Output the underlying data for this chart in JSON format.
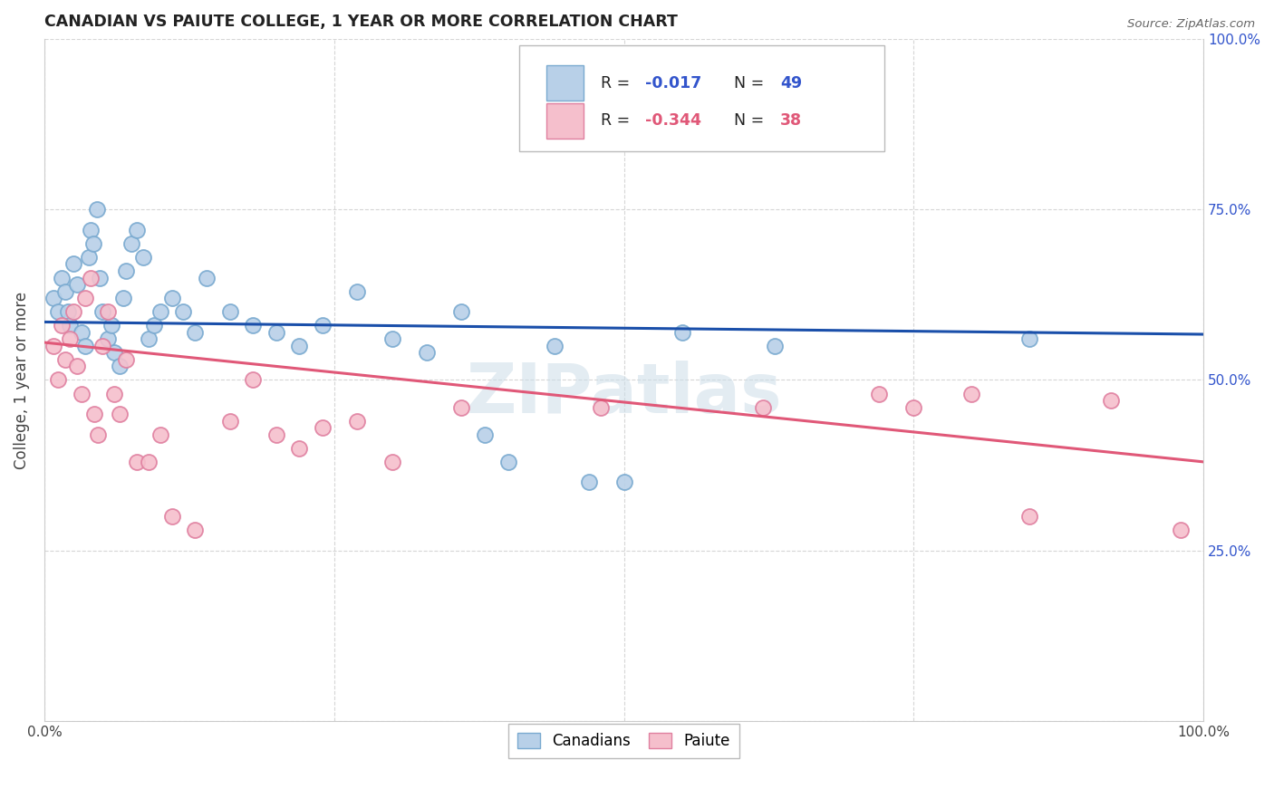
{
  "title": "CANADIAN VS PAIUTE COLLEGE, 1 YEAR OR MORE CORRELATION CHART",
  "source": "Source: ZipAtlas.com",
  "ylabel": "College, 1 year or more",
  "xlim": [
    0,
    1
  ],
  "ylim": [
    0,
    1
  ],
  "ytick_labels_right": [
    "100.0%",
    "75.0%",
    "50.0%",
    "25.0%"
  ],
  "ytick_positions_right": [
    1.0,
    0.75,
    0.5,
    0.25
  ],
  "legend_r1": "-0.017",
  "legend_n1": "49",
  "legend_r2": "-0.344",
  "legend_n2": "38",
  "canadians_color": "#b8d0e8",
  "canadians_edge": "#7aaad0",
  "paiute_color": "#f5bfcc",
  "paiute_edge": "#e080a0",
  "line_canadian_color": "#1a4faa",
  "line_paiute_color": "#e05878",
  "blue_text_color": "#3355cc",
  "pink_text_color": "#e05878",
  "watermark": "ZIPatlas",
  "canadians_x": [
    0.008,
    0.012,
    0.015,
    0.018,
    0.02,
    0.022,
    0.025,
    0.028,
    0.032,
    0.035,
    0.038,
    0.04,
    0.042,
    0.045,
    0.048,
    0.05,
    0.055,
    0.058,
    0.06,
    0.065,
    0.068,
    0.07,
    0.075,
    0.08,
    0.085,
    0.09,
    0.095,
    0.1,
    0.11,
    0.12,
    0.13,
    0.14,
    0.16,
    0.18,
    0.2,
    0.22,
    0.24,
    0.27,
    0.3,
    0.33,
    0.36,
    0.38,
    0.4,
    0.44,
    0.47,
    0.5,
    0.55,
    0.63,
    0.85
  ],
  "canadians_y": [
    0.62,
    0.6,
    0.65,
    0.63,
    0.6,
    0.58,
    0.67,
    0.64,
    0.57,
    0.55,
    0.68,
    0.72,
    0.7,
    0.75,
    0.65,
    0.6,
    0.56,
    0.58,
    0.54,
    0.52,
    0.62,
    0.66,
    0.7,
    0.72,
    0.68,
    0.56,
    0.58,
    0.6,
    0.62,
    0.6,
    0.57,
    0.65,
    0.6,
    0.58,
    0.57,
    0.55,
    0.58,
    0.63,
    0.56,
    0.54,
    0.6,
    0.42,
    0.38,
    0.55,
    0.35,
    0.35,
    0.57,
    0.55,
    0.56
  ],
  "paiute_x": [
    0.008,
    0.012,
    0.015,
    0.018,
    0.022,
    0.025,
    0.028,
    0.032,
    0.035,
    0.04,
    0.043,
    0.046,
    0.05,
    0.055,
    0.06,
    0.065,
    0.07,
    0.08,
    0.09,
    0.1,
    0.11,
    0.13,
    0.16,
    0.18,
    0.2,
    0.22,
    0.24,
    0.27,
    0.3,
    0.36,
    0.48,
    0.62,
    0.72,
    0.75,
    0.8,
    0.85,
    0.92,
    0.98
  ],
  "paiute_y": [
    0.55,
    0.5,
    0.58,
    0.53,
    0.56,
    0.6,
    0.52,
    0.48,
    0.62,
    0.65,
    0.45,
    0.42,
    0.55,
    0.6,
    0.48,
    0.45,
    0.53,
    0.38,
    0.38,
    0.42,
    0.3,
    0.28,
    0.44,
    0.5,
    0.42,
    0.4,
    0.43,
    0.44,
    0.38,
    0.46,
    0.46,
    0.46,
    0.48,
    0.46,
    0.48,
    0.3,
    0.47,
    0.28
  ],
  "canadian_line_x": [
    0.0,
    1.0
  ],
  "canadian_line_y": [
    0.585,
    0.567
  ],
  "paiute_line_x": [
    0.0,
    1.0
  ],
  "paiute_line_y": [
    0.555,
    0.38
  ],
  "grid_color": "#cccccc",
  "bg_color": "#ffffff"
}
